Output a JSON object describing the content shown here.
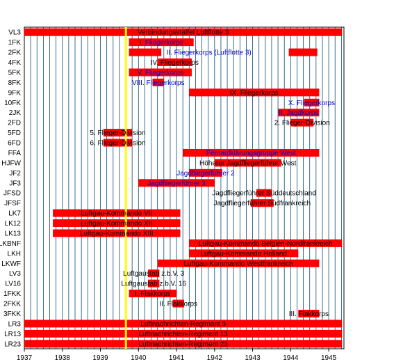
{
  "chart_data": {
    "type": "gantt",
    "title": "",
    "xlabel": "",
    "ylabel": "",
    "xlim": [
      1937,
      1945.4
    ],
    "x_ticks": [
      "1937",
      "1938",
      "1939",
      "1940",
      "1941",
      "1942",
      "1943",
      "1944",
      "1945"
    ],
    "grid": true,
    "bar_color": "#ff0000",
    "grid_color": "#0a4a73",
    "marker": {
      "x": 1939.67,
      "color": "#ffff00"
    },
    "rows": [
      {
        "code": "VL3",
        "bars": [
          [
            1937.0,
            1945.35
          ]
        ],
        "label": "Verbindungsstaffel Luftflotte 3",
        "label_color": "black"
      },
      {
        "code": "1FK",
        "bars": [
          [
            1939.75,
            1941.45
          ]
        ],
        "label": "I. Fliegerkorps",
        "label_color": "blue"
      },
      {
        "code": "2FK",
        "bars": [
          [
            1939.75,
            1940.6
          ],
          [
            1943.95,
            1944.7
          ]
        ],
        "label": "II. Fliegerkorps (Luftflotte 3)",
        "label_color": "blue"
      },
      {
        "code": "4FK",
        "bars": [
          [
            1940.5,
            1941.4
          ]
        ],
        "label": "IV. Fliegerkorps",
        "label_color": "black"
      },
      {
        "code": "5FK",
        "bars": [
          [
            1939.75,
            1941.4
          ]
        ],
        "label": "V. Fliegerkorps",
        "label_color": "blue"
      },
      {
        "code": "8FK",
        "bars": [
          [
            1940.37,
            1940.67
          ]
        ],
        "label": "VIII. Fliegerkorps",
        "label_color": "blue"
      },
      {
        "code": "9FK",
        "bars": [
          [
            1941.33,
            1944.75
          ]
        ],
        "label": "IX. Fliegerkorps",
        "label_color": "black"
      },
      {
        "code": "10FK",
        "bars": [
          [
            1944.35,
            1944.75
          ]
        ],
        "label": "X. Fliegerkorps",
        "label_color": "blue"
      },
      {
        "code": "2JK",
        "bars": [
          [
            1943.67,
            1944.75
          ]
        ],
        "label": "II. Jagdkorps",
        "label_color": "blue"
      },
      {
        "code": "2FD",
        "bars": [
          [
            1944.0,
            1944.6
          ]
        ],
        "label": "2. Flieger-Division",
        "label_color": "black"
      },
      {
        "code": "5FD",
        "bars": [
          [
            1939.08,
            1939.83
          ]
        ],
        "label": "5. Flieger-Division",
        "label_color": "black"
      },
      {
        "code": "6FD",
        "bars": [
          [
            1939.08,
            1939.83
          ]
        ],
        "label": "6. Flieger-Division",
        "label_color": "black"
      },
      {
        "code": "FFA",
        "bars": [
          [
            1941.17,
            1944.75
          ]
        ],
        "label": "Fernaufklärungsgruppe West",
        "label_color": "blue"
      },
      {
        "code": "HJFW",
        "bars": [
          [
            1942.0,
            1943.75
          ]
        ],
        "label": "Höherer Jagdfliegerführer West",
        "label_color": "black"
      },
      {
        "code": "JF2",
        "bars": [
          [
            1941.33,
            1942.2
          ]
        ],
        "label": "Jagdfliegerführer 2",
        "label_color": "blue"
      },
      {
        "code": "JF3",
        "bars": [
          [
            1940.0,
            1942.0
          ]
        ],
        "label": "Jagdfliegerführer 3",
        "label_color": "blue"
      },
      {
        "code": "JFSD",
        "bars": [
          [
            1943.1,
            1943.5
          ]
        ],
        "label": "Jagdfliegerführer Süddeutschland",
        "label_color": "black"
      },
      {
        "code": "JFSF",
        "bars": [
          [
            1942.95,
            1943.55
          ]
        ],
        "label": "Jagdfliegerführer Südfrankreich",
        "label_color": "black"
      },
      {
        "code": "LK7",
        "bars": [
          [
            1937.75,
            1941.1
          ]
        ],
        "label": "Luftgau-Kommando VII",
        "label_color": "black"
      },
      {
        "code": "LK12",
        "bars": [
          [
            1937.75,
            1941.1
          ]
        ],
        "label": "Luftgau-Kommando XII",
        "label_color": "black"
      },
      {
        "code": "LK13",
        "bars": [
          [
            1937.75,
            1941.1
          ]
        ],
        "label": "Luftgau-Kommando XIII",
        "label_color": "black"
      },
      {
        "code": "LKBNF",
        "bars": [
          [
            1941.33,
            1945.35
          ]
        ],
        "label": "Luftgau-Kommando Belgien-Nordfrankreich",
        "label_color": "black"
      },
      {
        "code": "LKH",
        "bars": [
          [
            1941.33,
            1944.2
          ]
        ],
        "label": "Luftgau-Kommando Holland",
        "label_color": "black"
      },
      {
        "code": "LKWF",
        "bars": [
          [
            1940.5,
            1944.75
          ]
        ],
        "label": "Luftgau-Kommando Westfrankreich",
        "label_color": "black"
      },
      {
        "code": "LV3",
        "bars": [
          [
            1940.25,
            1940.55
          ]
        ],
        "label": "Luftgaustab z.b.V. 3",
        "label_color": "black"
      },
      {
        "code": "LV16",
        "bars": [
          [
            1940.25,
            1940.55
          ]
        ],
        "label": "Luftgaustab z.b.V. 16",
        "label_color": "black"
      },
      {
        "code": "1FKK",
        "bars": [
          [
            1939.75,
            1941.0
          ]
        ],
        "label": "I. Flakkorps",
        "label_color": "black"
      },
      {
        "code": "2FKK",
        "bars": [
          [
            1940.9,
            1941.2
          ]
        ],
        "label": "II. Flakkorps",
        "label_color": "black"
      },
      {
        "code": "3FKK",
        "bars": [
          [
            1944.2,
            1944.75
          ]
        ],
        "label": "III. Flakkorps",
        "label_color": "black"
      },
      {
        "code": "LR3",
        "bars": [
          [
            1937.0,
            1945.35
          ]
        ],
        "label": "Luftnachrichten-Regiment 3",
        "label_color": "black"
      },
      {
        "code": "LR13",
        "bars": [
          [
            1937.0,
            1945.35
          ]
        ],
        "label": "Luftnachrichten-Regiment 13",
        "label_color": "black"
      },
      {
        "code": "LR23",
        "bars": [
          [
            1937.0,
            1945.35
          ]
        ],
        "label": "Luftnachrichten-Regiment 23",
        "label_color": "black"
      }
    ]
  }
}
